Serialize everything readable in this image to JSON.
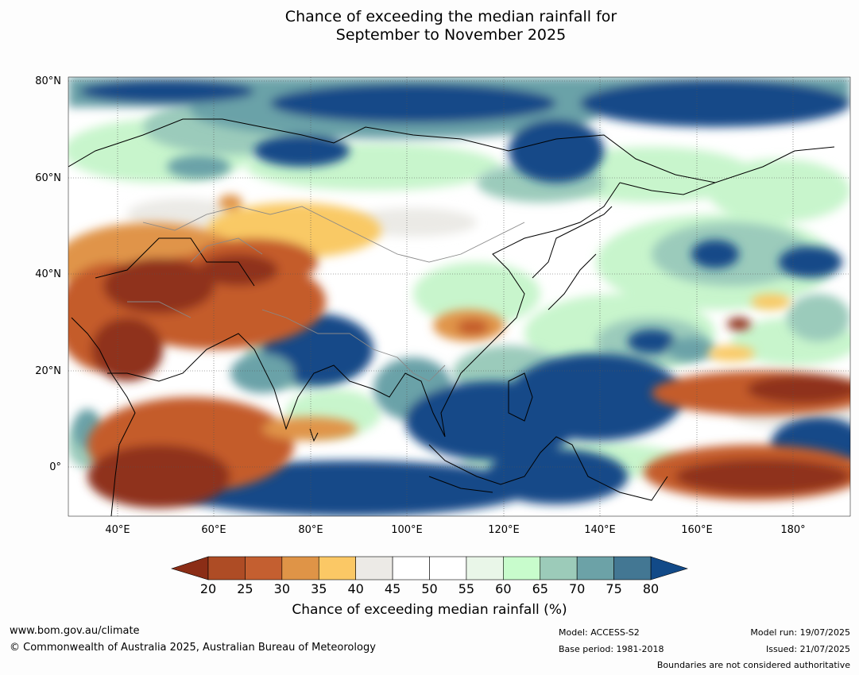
{
  "title": {
    "line1": "Chance of exceeding the median rainfall for",
    "line2": "September to November 2025"
  },
  "map": {
    "lat_labels": [
      "80°N",
      "60°N",
      "40°N",
      "20°N",
      "0°"
    ],
    "lon_labels": [
      "40°E",
      "60°E",
      "80°E",
      "100°E",
      "120°E",
      "140°E",
      "160°E",
      "180°"
    ],
    "extent": {
      "lon": [
        30,
        190
      ],
      "lat": [
        -10,
        80
      ]
    },
    "colors": {
      "ocean_blue": "#124a88",
      "dry_dark": "#8f321b",
      "dry_mid": "#c45c2c",
      "dry_light": "#f9c965",
      "neutral": "#ebeae6",
      "wet_light": "#c8f5cc",
      "wet_mid": "#9bcbbb",
      "wet_teal": "#6aa2a8"
    }
  },
  "colorbar": {
    "ticks": [
      "20",
      "25",
      "30",
      "35",
      "40",
      "45",
      "50",
      "55",
      "60",
      "65",
      "70",
      "75",
      "80"
    ],
    "colors": [
      "#ae4c25",
      "#c45f30",
      "#df9447",
      "#fbc865",
      "#eceae6",
      "#ffffff",
      "#ffffff",
      "#e9f6e8",
      "#c8fccc",
      "#9ccbb9",
      "#6ca2a7",
      "#437793"
    ],
    "under_color": "#8b2d16",
    "over_color": "#124a88",
    "label": "Chance of exceeding median rainfall (%)"
  },
  "footer": {
    "website": "www.bom.gov.au/climate",
    "copyright": "© Commonwealth of Australia 2025, Australian Bureau of Meteorology",
    "model": "Model: ACCESS-S2",
    "base_period": "Base period: 1981-2018",
    "model_run": "Model run: 19/07/2025",
    "issued": "Issued: 21/07/2025",
    "disclaimer": "Boundaries are not considered authoritative"
  }
}
